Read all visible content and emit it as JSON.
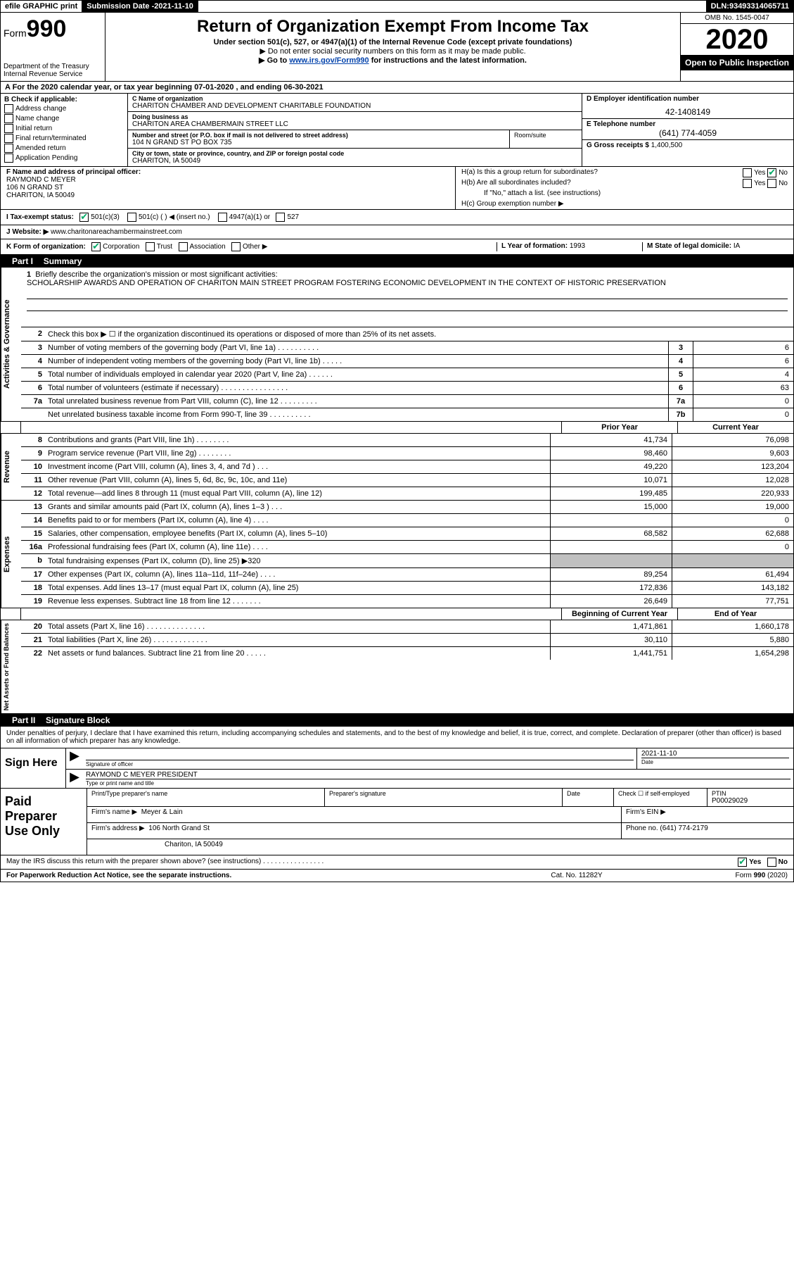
{
  "topbar": {
    "efile": "efile GRAPHIC print",
    "submission_label": "Submission Date - ",
    "submission_date": "2021-11-10",
    "dln_label": "DLN: ",
    "dln": "93493314065711"
  },
  "header": {
    "form_label": "Form",
    "form_number": "990",
    "dept": "Department of the Treasury",
    "irs": "Internal Revenue Service",
    "title": "Return of Organization Exempt From Income Tax",
    "subtitle": "Under section 501(c), 527, or 4947(a)(1) of the Internal Revenue Code (except private foundations)",
    "note1": "▶ Do not enter social security numbers on this form as it may be made public.",
    "note2_pre": "▶ Go to ",
    "note2_link": "www.irs.gov/Form990",
    "note2_post": " for instructions and the latest information.",
    "omb": "OMB No. 1545-0047",
    "year": "2020",
    "open": "Open to Public Inspection"
  },
  "period": "A For the 2020 calendar year, or tax year beginning 07-01-2020    , and ending 06-30-2021",
  "boxB": {
    "label": "B Check if applicable:",
    "items": [
      "Address change",
      "Name change",
      "Initial return",
      "Final return/terminated",
      "Amended return",
      "Application Pending"
    ]
  },
  "boxC": {
    "name_lbl": "C Name of organization",
    "name": "CHARITON CHAMBER AND DEVELOPMENT CHARITABLE FOUNDATION",
    "dba_lbl": "Doing business as",
    "dba": "CHARITON AREA CHAMBERMAIN STREET LLC",
    "addr_lbl": "Number and street (or P.O. box if mail is not delivered to street address)",
    "roomsuite": "Room/suite",
    "addr": "104 N GRAND ST PO BOX 735",
    "city_lbl": "City or town, state or province, country, and ZIP or foreign postal code",
    "city": "CHARITON, IA  50049"
  },
  "boxD": {
    "ein_lbl": "D Employer identification number",
    "ein": "42-1408149",
    "phone_lbl": "E Telephone number",
    "phone": "(641) 774-4059",
    "gross_lbl": "G Gross receipts $",
    "gross": "1,400,500"
  },
  "boxF": {
    "lbl": "F Name and address of principal officer:",
    "line1": "RAYMOND C MEYER",
    "line2": "106 N GRAND ST",
    "line3": "CHARITON, IA  50049"
  },
  "boxH": {
    "ha": "H(a)  Is this a group return for subordinates?",
    "hb": "H(b)  Are all subordinates included?",
    "hb_note": "If \"No,\" attach a list. (see instructions)",
    "hc": "H(c)  Group exemption number ▶"
  },
  "taxrow": {
    "lbl": "I  Tax-exempt status:",
    "opt1": "501(c)(3)",
    "opt2": "501(c) (  ) ◀ (insert no.)",
    "opt3": "4947(a)(1) or",
    "opt4": "527"
  },
  "website": {
    "lbl": "J Website: ▶ ",
    "val": "www.charitonareachambermainstreet.com"
  },
  "korg": {
    "lbl": "K Form of organization:",
    "opts": [
      "Corporation",
      "Trust",
      "Association",
      "Other ▶"
    ],
    "year_lbl": "L Year of formation:",
    "year": "1993",
    "state_lbl": "M State of legal domicile:",
    "state": "IA"
  },
  "part1": {
    "label": "Part I",
    "title": "Summary"
  },
  "mission": {
    "num": "1",
    "lbl": "Briefly describe the organization's mission or most significant activities:",
    "text": "SCHOLARSHIP AWARDS AND OPERATION OF CHARITON MAIN STREET PROGRAM FOSTERING ECONOMIC DEVELOPMENT IN THE CONTEXT OF HISTORIC PRESERVATION"
  },
  "vtabs": {
    "ag": "Activities & Governance",
    "rev": "Revenue",
    "exp": "Expenses",
    "na": "Net Assets or Fund Balances"
  },
  "ag_lines": [
    {
      "n": "2",
      "d": "Check this box ▶ ☐  if the organization discontinued its operations or disposed of more than 25% of its net assets."
    },
    {
      "n": "3",
      "d": "Number of voting members of the governing body (Part VI, line 1a)  .  .  .  .  .  .  .  .  .  .",
      "b": "3",
      "v": "6"
    },
    {
      "n": "4",
      "d": "Number of independent voting members of the governing body (Part VI, line 1b)  .  .  .  .  .",
      "b": "4",
      "v": "6"
    },
    {
      "n": "5",
      "d": "Total number of individuals employed in calendar year 2020 (Part V, line 2a)  .  .  .  .  .  .",
      "b": "5",
      "v": "4"
    },
    {
      "n": "6",
      "d": "Total number of volunteers (estimate if necessary)  .  .  .  .  .  .  .  .  .  .  .  .  .  .  .  .",
      "b": "6",
      "v": "63"
    },
    {
      "n": "7a",
      "d": "Total unrelated business revenue from Part VIII, column (C), line 12  .  .  .  .  .  .  .  .  .",
      "b": "7a",
      "v": "0"
    },
    {
      "n": "",
      "d": "Net unrelated business taxable income from Form 990-T, line 39  .  .  .  .  .  .  .  .  .  .",
      "b": "7b",
      "v": "0"
    },
    {
      "n": "b",
      "d": ""
    }
  ],
  "yearhdr": {
    "py": "Prior Year",
    "cy": "Current Year"
  },
  "rev_lines": [
    {
      "n": "8",
      "d": "Contributions and grants (Part VIII, line 1h)  .  .  .  .  .  .  .  .",
      "py": "41,734",
      "cy": "76,098"
    },
    {
      "n": "9",
      "d": "Program service revenue (Part VIII, line 2g)  .  .  .  .  .  .  .  .",
      "py": "98,460",
      "cy": "9,603"
    },
    {
      "n": "10",
      "d": "Investment income (Part VIII, column (A), lines 3, 4, and 7d )  .  .  .",
      "py": "49,220",
      "cy": "123,204"
    },
    {
      "n": "11",
      "d": "Other revenue (Part VIII, column (A), lines 5, 6d, 8c, 9c, 10c, and 11e)",
      "py": "10,071",
      "cy": "12,028"
    },
    {
      "n": "12",
      "d": "Total revenue—add lines 8 through 11 (must equal Part VIII, column (A), line 12)",
      "py": "199,485",
      "cy": "220,933"
    }
  ],
  "exp_lines": [
    {
      "n": "13",
      "d": "Grants and similar amounts paid (Part IX, column (A), lines 1–3 )  .  .  .",
      "py": "15,000",
      "cy": "19,000"
    },
    {
      "n": "14",
      "d": "Benefits paid to or for members (Part IX, column (A), line 4)  .  .  .  .",
      "py": "",
      "cy": "0"
    },
    {
      "n": "15",
      "d": "Salaries, other compensation, employee benefits (Part IX, column (A), lines 5–10)",
      "py": "68,582",
      "cy": "62,688"
    },
    {
      "n": "16a",
      "d": "Professional fundraising fees (Part IX, column (A), line 11e)  .  .  .  .",
      "py": "",
      "cy": "0"
    },
    {
      "n": "b",
      "d": "Total fundraising expenses (Part IX, column (D), line 25) ▶320",
      "py": "GREY",
      "cy": "GREY"
    },
    {
      "n": "17",
      "d": "Other expenses (Part IX, column (A), lines 11a–11d, 11f–24e)  .  .  .  .",
      "py": "89,254",
      "cy": "61,494"
    },
    {
      "n": "18",
      "d": "Total expenses. Add lines 13–17 (must equal Part IX, column (A), line 25)",
      "py": "172,836",
      "cy": "143,182"
    },
    {
      "n": "19",
      "d": "Revenue less expenses. Subtract line 18 from line 12 .  .  .  .  .  .  .",
      "py": "26,649",
      "cy": "77,751"
    }
  ],
  "na_hdr": {
    "py": "Beginning of Current Year",
    "cy": "End of Year"
  },
  "na_lines": [
    {
      "n": "20",
      "d": "Total assets (Part X, line 16)  .  .  .  .  .  .  .  .  .  .  .  .  .  .",
      "py": "1,471,861",
      "cy": "1,660,178"
    },
    {
      "n": "21",
      "d": "Total liabilities (Part X, line 26)  .  .  .  .  .  .  .  .  .  .  .  .  .",
      "py": "30,110",
      "cy": "5,880"
    },
    {
      "n": "22",
      "d": "Net assets or fund balances. Subtract line 21 from line 20  .  .  .  .  .",
      "py": "1,441,751",
      "cy": "1,654,298"
    }
  ],
  "part2": {
    "label": "Part II",
    "title": "Signature Block"
  },
  "sig_intro": "Under penalties of perjury, I declare that I have examined this return, including accompanying schedules and statements, and to the best of my knowledge and belief, it is true, correct, and complete. Declaration of preparer (other than officer) is based on all information of which preparer has any knowledge.",
  "sign": {
    "label": "Sign Here",
    "sig_lbl": "Signature of officer",
    "date_lbl": "Date",
    "date": "2021-11-10",
    "name": "RAYMOND C MEYER  PRESIDENT",
    "name_lbl": "Type or print name and title"
  },
  "prep": {
    "label": "Paid Preparer Use Only",
    "h1": "Print/Type preparer's name",
    "h2": "Preparer's signature",
    "h3": "Date",
    "h4_pre": "Check ☐ if self-employed",
    "h5_lbl": "PTIN",
    "h5": "P00029029",
    "firm_name_lbl": "Firm's name    ▶",
    "firm_name": "Meyer & Lain",
    "firm_ein_lbl": "Firm's EIN ▶",
    "firm_addr_lbl": "Firm's address ▶",
    "firm_addr1": "106 North Grand St",
    "firm_addr2": "Chariton, IA  50049",
    "firm_phone_lbl": "Phone no.",
    "firm_phone": "(641) 774-2179"
  },
  "discuss": "May the IRS discuss this return with the preparer shown above? (see instructions)  .  .  .  .  .  .  .  .  .  .  .  .  .  .  .  .",
  "discuss_yes": "Yes",
  "discuss_no": "No",
  "footer": {
    "l": "For Paperwork Reduction Act Notice, see the separate instructions.",
    "m": "Cat. No. 11282Y",
    "r": "Form 990 (2020)"
  },
  "yes": "Yes",
  "no": "No"
}
